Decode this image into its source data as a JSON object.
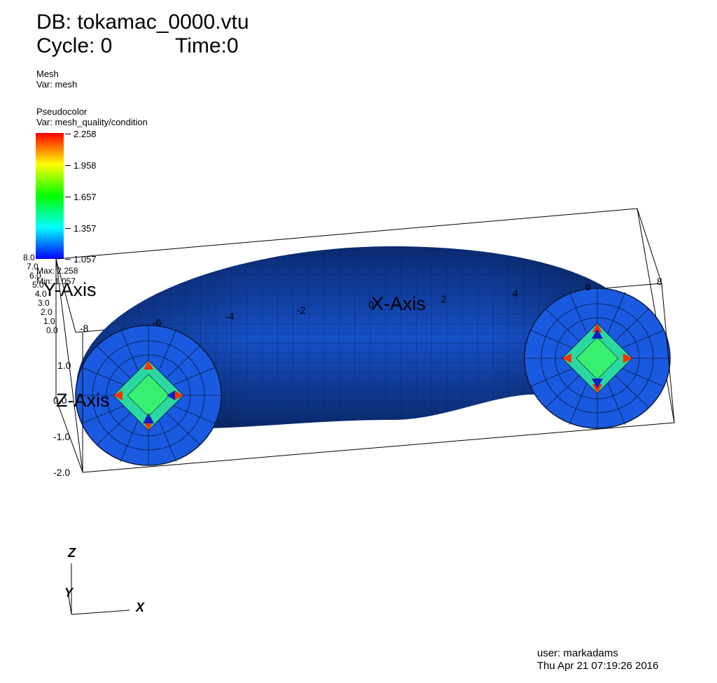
{
  "header": {
    "db": "DB: tokamac_0000.vtu",
    "cycle": "Cycle: 0",
    "time": "Time:0"
  },
  "mesh_legend": {
    "plot": "Mesh",
    "var": "Var: mesh"
  },
  "pseudocolor_legend": {
    "plot": "Pseudocolor",
    "var": "Var: mesh_quality/condition",
    "ticks": [
      "2.258",
      "1.958",
      "1.657",
      "1.357",
      "1.057"
    ],
    "max": "Max:  2.258",
    "min": "Min:  1.057",
    "colors": [
      "#ff0000",
      "#ffff00",
      "#00ff00",
      "#00ffff",
      "#0000ff"
    ]
  },
  "axes": {
    "x_title": "X-Axis",
    "y_title": "Y-Axis",
    "z_title": "Z-Axis",
    "x_ticks": [
      "-8",
      "-6",
      "-4",
      "-2",
      "0",
      "2",
      "4",
      "6",
      "8"
    ],
    "z_ticks": [
      "1.0",
      "0.0",
      "-1.0",
      "-2.0"
    ],
    "y_ticks": [
      "8.0",
      "7.0",
      "6.0",
      "5.0",
      "4.0",
      "3.0",
      "2.0",
      "1.0",
      "0.0"
    ]
  },
  "triad": {
    "z": "Z",
    "y": "Y",
    "x": "X"
  },
  "footer": {
    "user": "user: markadams",
    "date": "Thu Apr 21 07:19:26 2016"
  }
}
